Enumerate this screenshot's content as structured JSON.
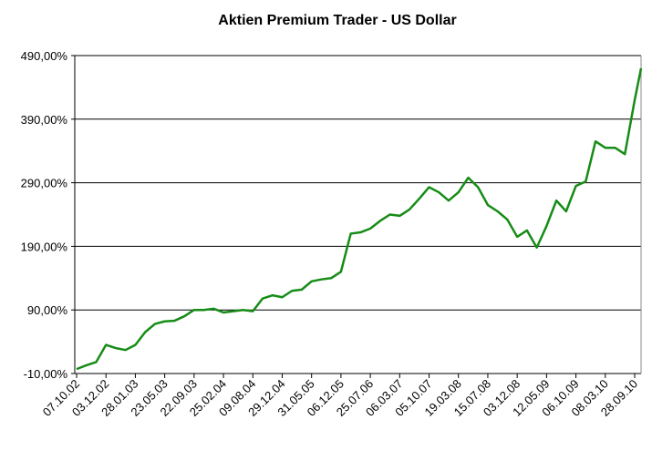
{
  "chart_data": {
    "type": "line",
    "title": "Aktien Premium Trader - US Dollar",
    "categories": [
      "07.10.02",
      null,
      null,
      "03.12.02",
      null,
      null,
      "28.01.03",
      null,
      null,
      "23.05.03",
      null,
      null,
      "22.09.03",
      null,
      null,
      "25.02.04",
      null,
      null,
      "09.08.04",
      null,
      null,
      "29.12.04",
      null,
      null,
      "31.05.05",
      null,
      null,
      "06.12.05",
      null,
      null,
      "25.07.06",
      null,
      null,
      "06.03.07",
      null,
      null,
      "05.10.07",
      null,
      null,
      "19.03.08",
      null,
      null,
      "15.07.08",
      null,
      null,
      "03.12.08",
      null,
      null,
      "12.05.09",
      null,
      null,
      "06.10.09",
      null,
      null,
      "08.03.10",
      null,
      null,
      "28.09.10",
      null
    ],
    "series": [
      {
        "name": "Aktien Premium Trader",
        "color": "#168c16",
        "values": [
          -3,
          3,
          8,
          35,
          30,
          27,
          35,
          55,
          68,
          72,
          73,
          80,
          90,
          90,
          92,
          86,
          88,
          90,
          88,
          108,
          113,
          110,
          120,
          122,
          135,
          138,
          140,
          150,
          210,
          212,
          218,
          230,
          240,
          238,
          248,
          265,
          283,
          275,
          262,
          275,
          298,
          283,
          255,
          245,
          232,
          205,
          215,
          188,
          222,
          262,
          245,
          285,
          292,
          355,
          345,
          345,
          335,
          420,
          470
        ]
      }
    ],
    "ylim": [
      -10,
      490
    ],
    "yticks": [
      {
        "value": -10,
        "label": "-10,00%"
      },
      {
        "value": 90,
        "label": "90,00%"
      },
      {
        "value": 190,
        "label": "190,00%"
      },
      {
        "value": 290,
        "label": "290,00%"
      },
      {
        "value": 390,
        "label": "390,00%"
      },
      {
        "value": 490,
        "label": "490,00%"
      }
    ],
    "grid": true
  }
}
